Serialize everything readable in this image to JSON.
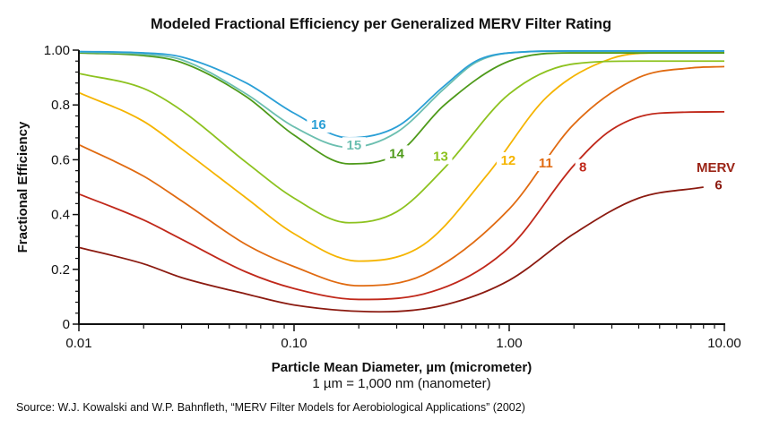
{
  "chart_data": {
    "type": "line",
    "title": "Modeled Fractional Efficiency per Generalized MERV Filter Rating",
    "xlabel": "Particle Mean Diameter, µm (micrometer)",
    "xlabel_sub": "1 µm = 1,000 nm (nanometer)",
    "ylabel": "Fractional Efficiency",
    "xscale": "log",
    "xlim": [
      0.01,
      10
    ],
    "ylim": [
      0,
      1
    ],
    "xticks": [
      0.01,
      0.1,
      1,
      10
    ],
    "xtick_labels": [
      "0.01",
      "0.10",
      "1.00",
      "10.00"
    ],
    "yticks": [
      0,
      0.2,
      0.4,
      0.6,
      0.8,
      1.0
    ],
    "ytick_labels": [
      "0",
      "0.2",
      "0.4",
      "0.6",
      "0.8",
      "1.00"
    ],
    "grid": false,
    "legend_title": "MERV",
    "series": [
      {
        "name": "16",
        "color": "#2a9fd6",
        "x": [
          0.01,
          0.02,
          0.03,
          0.06,
          0.1,
          0.18,
          0.3,
          0.5,
          0.7,
          1,
          2,
          10
        ],
        "y": [
          0.995,
          0.99,
          0.975,
          0.88,
          0.77,
          0.68,
          0.72,
          0.87,
          0.96,
          0.99,
          0.997,
          0.997
        ]
      },
      {
        "name": "15",
        "color": "#6cbfb0",
        "x": [
          0.01,
          0.02,
          0.03,
          0.06,
          0.1,
          0.18,
          0.3,
          0.5,
          0.7,
          1,
          2,
          10
        ],
        "y": [
          0.993,
          0.985,
          0.965,
          0.84,
          0.72,
          0.645,
          0.7,
          0.86,
          0.955,
          0.99,
          0.997,
          0.997
        ]
      },
      {
        "name": "14",
        "color": "#4e9a1a",
        "x": [
          0.01,
          0.02,
          0.03,
          0.06,
          0.1,
          0.18,
          0.3,
          0.5,
          1,
          2,
          10
        ],
        "y": [
          0.99,
          0.98,
          0.955,
          0.83,
          0.69,
          0.585,
          0.62,
          0.8,
          0.96,
          0.99,
          0.99
        ]
      },
      {
        "name": "13",
        "color": "#8dc21f",
        "x": [
          0.01,
          0.02,
          0.03,
          0.06,
          0.1,
          0.18,
          0.3,
          0.5,
          1,
          2,
          4,
          10
        ],
        "y": [
          0.915,
          0.86,
          0.78,
          0.59,
          0.46,
          0.37,
          0.41,
          0.57,
          0.84,
          0.95,
          0.96,
          0.96
        ]
      },
      {
        "name": "12",
        "color": "#f5b400",
        "x": [
          0.01,
          0.02,
          0.03,
          0.06,
          0.1,
          0.2,
          0.4,
          0.8,
          1.5,
          3,
          5,
          10
        ],
        "y": [
          0.845,
          0.74,
          0.64,
          0.46,
          0.33,
          0.23,
          0.29,
          0.55,
          0.83,
          0.97,
          0.99,
          0.99
        ]
      },
      {
        "name": "11",
        "color": "#e06a10",
        "x": [
          0.01,
          0.02,
          0.03,
          0.06,
          0.1,
          0.2,
          0.4,
          1,
          2,
          4,
          7,
          10
        ],
        "y": [
          0.655,
          0.54,
          0.45,
          0.29,
          0.21,
          0.14,
          0.18,
          0.42,
          0.73,
          0.9,
          0.935,
          0.94
        ]
      },
      {
        "name": "8",
        "color": "#c0281a",
        "x": [
          0.01,
          0.02,
          0.03,
          0.06,
          0.1,
          0.2,
          0.4,
          1,
          2,
          3,
          5,
          10
        ],
        "y": [
          0.475,
          0.38,
          0.31,
          0.19,
          0.13,
          0.09,
          0.11,
          0.28,
          0.58,
          0.71,
          0.77,
          0.775
        ]
      },
      {
        "name": "6",
        "color": "#8b1a10",
        "x": [
          0.01,
          0.02,
          0.03,
          0.06,
          0.1,
          0.25,
          0.5,
          1,
          2,
          4,
          8
        ],
        "y": [
          0.28,
          0.22,
          0.17,
          0.11,
          0.07,
          0.045,
          0.07,
          0.16,
          0.33,
          0.46,
          0.5
        ]
      }
    ],
    "annotations": [
      {
        "text": "16",
        "series": "16",
        "x": 0.13,
        "y": 0.715
      },
      {
        "text": "15",
        "series": "15",
        "x": 0.19,
        "y": 0.64
      },
      {
        "text": "14",
        "series": "14",
        "x": 0.3,
        "y": 0.61
      },
      {
        "text": "13",
        "series": "13",
        "x": 0.48,
        "y": 0.6
      },
      {
        "text": "12",
        "series": "12",
        "x": 0.99,
        "y": 0.585
      },
      {
        "text": "11",
        "series": "11",
        "x": 1.48,
        "y": 0.575
      },
      {
        "text": "8",
        "series": "8",
        "x": 2.2,
        "y": 0.56
      },
      {
        "text": "6",
        "series": "6",
        "x": 9.4,
        "y": 0.495
      }
    ],
    "source": "Source: W.J. Kowalski and W.P. Bahnfleth, “MERV Filter Models for Aerobiological Applications” (2002)"
  }
}
